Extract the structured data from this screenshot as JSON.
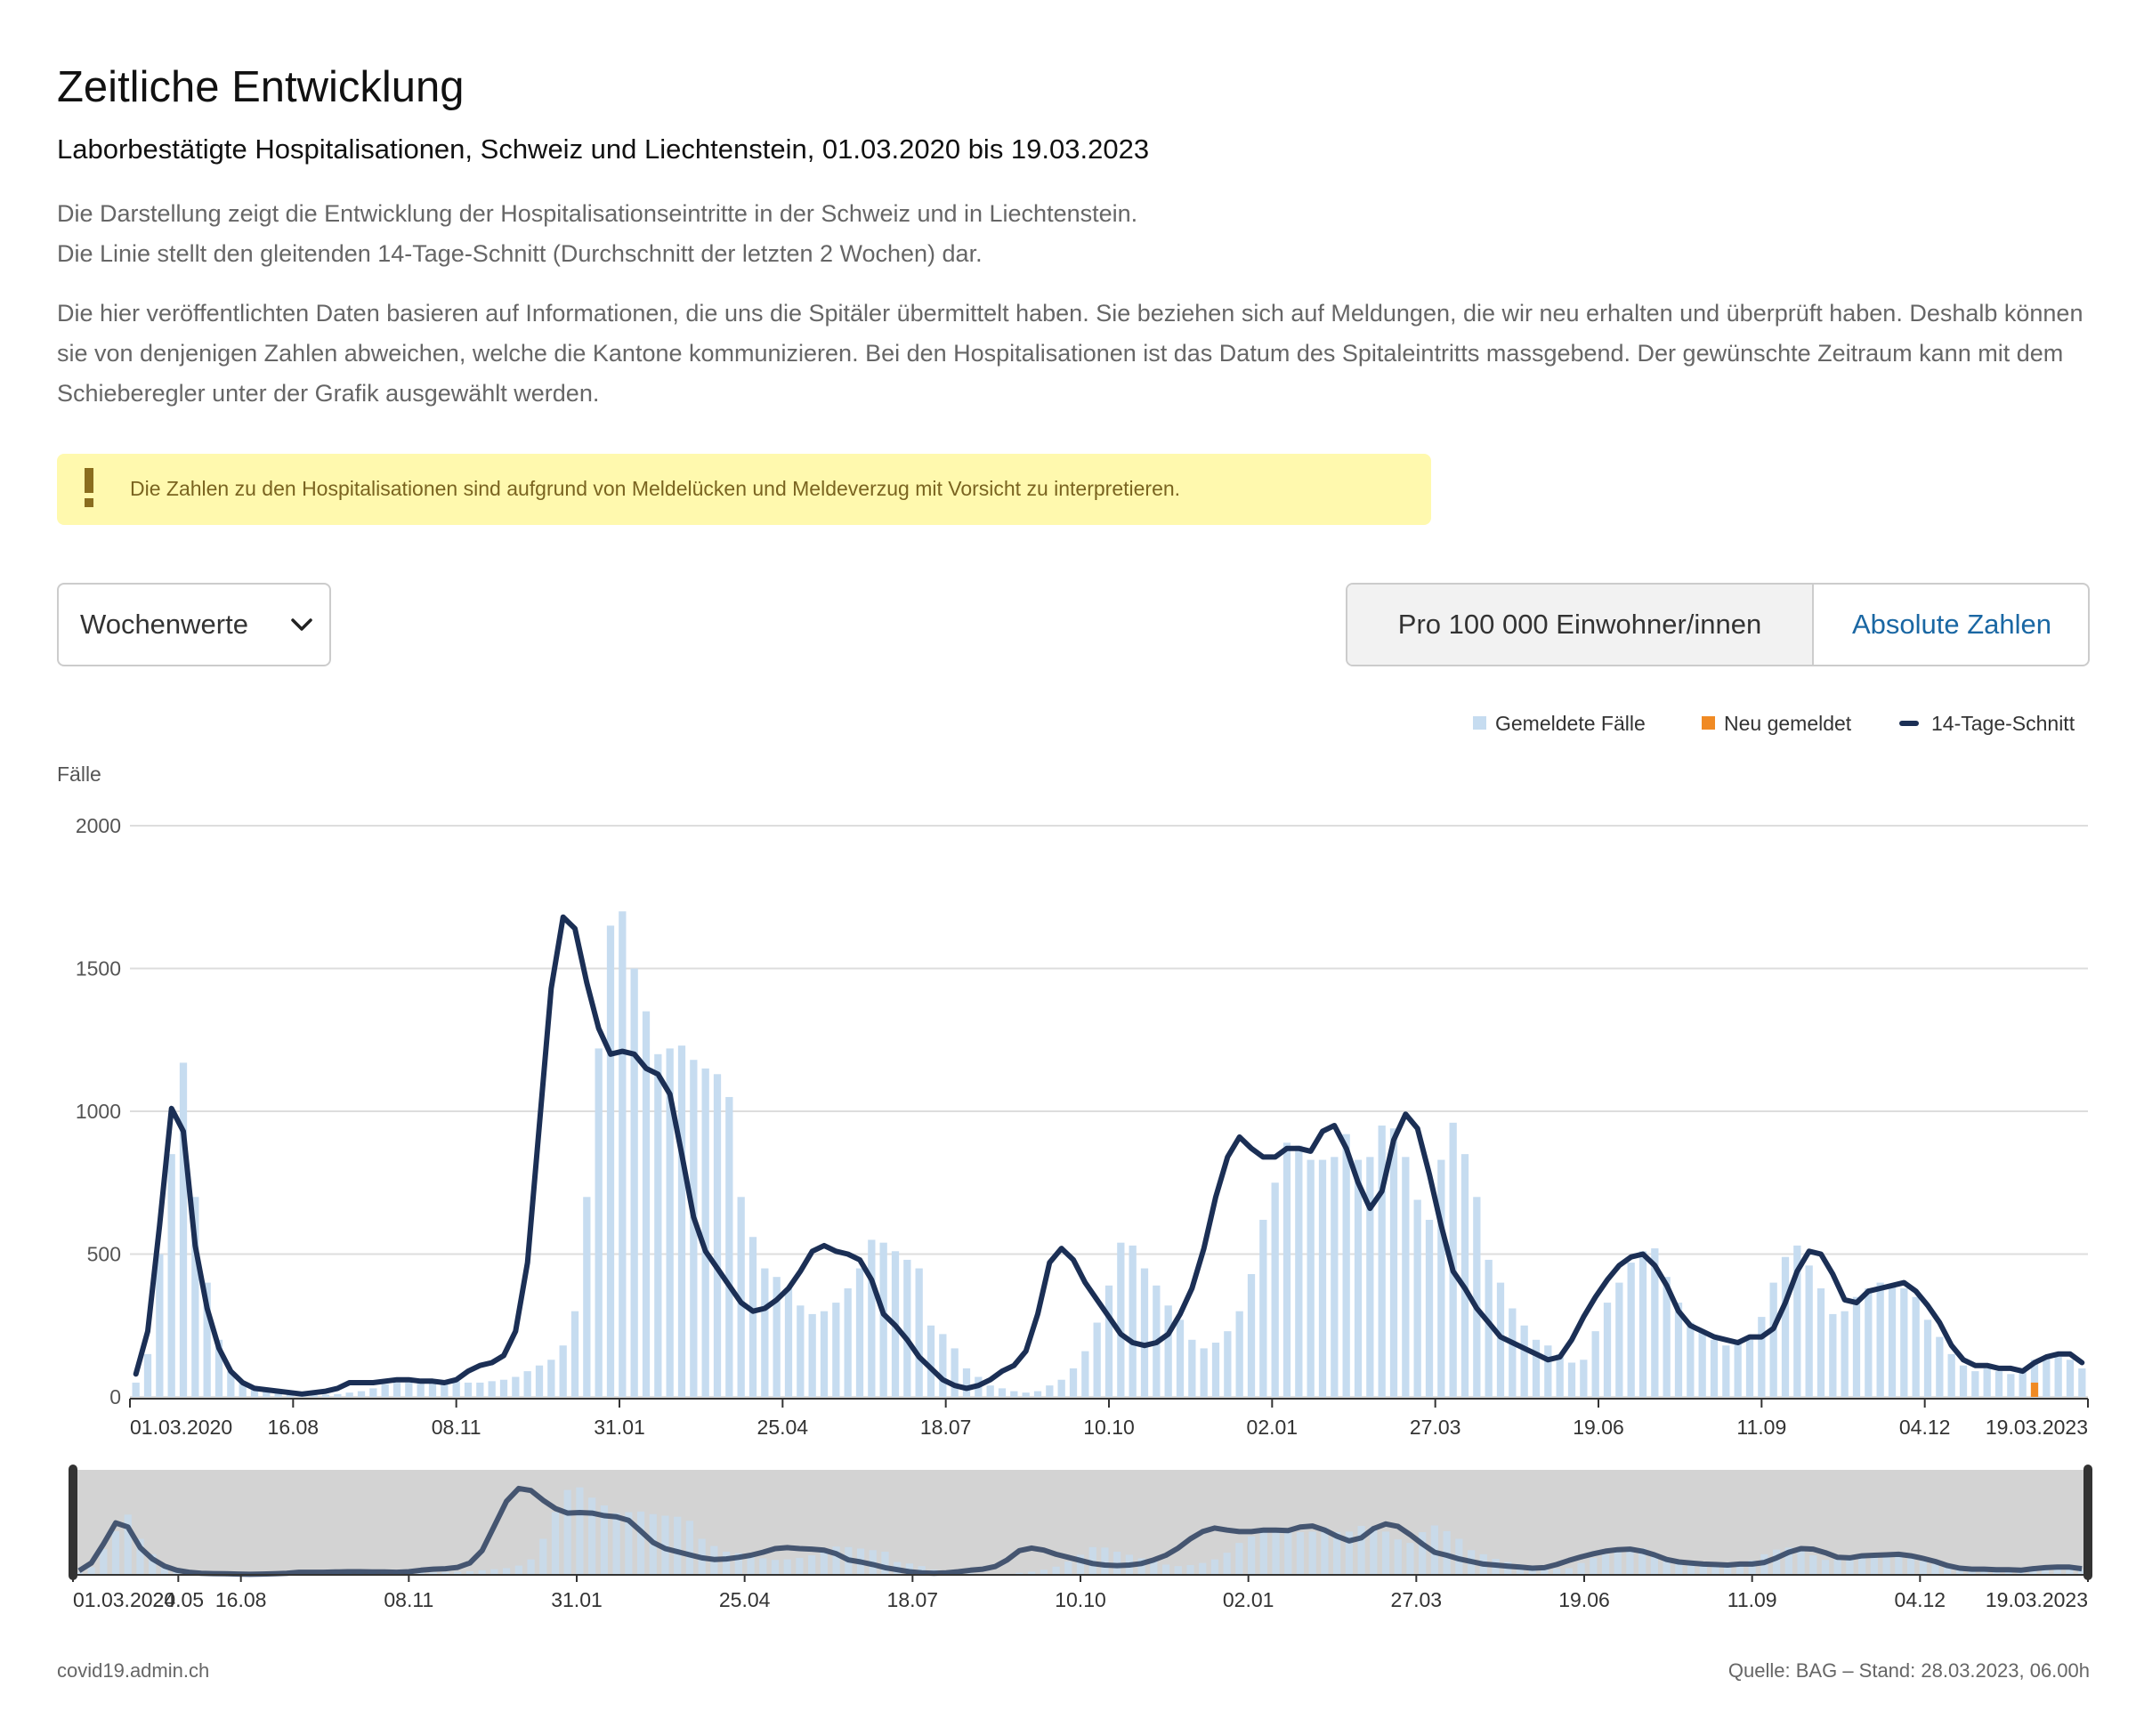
{
  "header": {
    "title": "Zeitliche Entwicklung",
    "subtitle": "Laborbestätigte Hospitalisationen, Schweiz und Liechtenstein, 01.03.2020 bis 19.03.2023"
  },
  "description": {
    "line1": "Die Darstellung zeigt die Entwicklung der Hospitalisationseintritte in der Schweiz und in Liechtenstein.",
    "line2": "Die Linie stellt den gleitenden 14-Tage-Schnitt (Durchschnitt der letzten 2 Wochen) dar.",
    "para2": "Die hier veröffentlichten Daten basieren auf Informationen, die uns die Spitäler übermittelt haben. Sie beziehen sich auf Meldungen, die wir neu erhalten und überprüft haben. Deshalb können sie von denjenigen Zahlen abweichen, welche die Kantone kommunizieren. Bei den Hospitalisationen ist das Datum des Spitaleintritts massgebend. Der gewünschte Zeitraum kann mit dem Schieberegler unter der Grafik ausgewählt werden."
  },
  "warning": {
    "icon": "exclamation-icon",
    "text": "Die Zahlen zu den Hospitalisationen sind aufgrund von Meldelücken und Meldeverzug mit Vorsicht zu interpretieren."
  },
  "controls": {
    "granularity_selected": "Wochenwerte",
    "toggle_per_capita": "Pro 100 000 Einwohner/innen",
    "toggle_absolute": "Absolute Zahlen",
    "toggle_active": "toggle_per_capita"
  },
  "legend": {
    "reported": "Gemeldete Fälle",
    "new": "Neu gemeldet",
    "avg": "14-Tage-Schnitt"
  },
  "colors": {
    "bar": "#c6dcf0",
    "new": "#f08a24",
    "line": "#1b2f55",
    "grid": "#dddddd",
    "brush_bg": "#d3d3d3",
    "handle": "#333333",
    "link": "#1a67a3"
  },
  "chart_data": {
    "type": "bar",
    "ylabel": "Fälle",
    "ylim": [
      0,
      2000
    ],
    "yticks": [
      0,
      500,
      1000,
      1500,
      2000
    ],
    "xlabel": "",
    "x_ticks": [
      "01.03.2020",
      "16.08",
      "08.11",
      "31.01",
      "25.04",
      "18.07",
      "10.10",
      "02.01",
      "27.03",
      "19.06",
      "11.09",
      "04.12",
      "19.03.2023"
    ],
    "brush_ticks": [
      "01.03.2020",
      "24.05",
      "16.08",
      "08.11",
      "31.01",
      "25.04",
      "18.07",
      "10.10",
      "02.01",
      "27.03",
      "19.06",
      "11.09",
      "04.12",
      "19.03.2023"
    ],
    "start_date": "01.03.2020",
    "end_date": "19.03.2023",
    "series": [
      {
        "name": "Gemeldete Fälle",
        "type": "bar",
        "values": [
          50,
          150,
          500,
          850,
          1170,
          700,
          400,
          200,
          90,
          50,
          30,
          20,
          15,
          10,
          8,
          6,
          8,
          10,
          15,
          20,
          30,
          45,
          50,
          50,
          55,
          60,
          55,
          55,
          50,
          50,
          55,
          60,
          70,
          90,
          110,
          130,
          180,
          300,
          700,
          1220,
          1650,
          1700,
          1500,
          1350,
          1200,
          1220,
          1230,
          1180,
          1150,
          1130,
          1050,
          700,
          560,
          450,
          420,
          380,
          320,
          290,
          300,
          330,
          380,
          450,
          550,
          540,
          510,
          480,
          450,
          250,
          220,
          170,
          100,
          70,
          40,
          30,
          20,
          15,
          20,
          40,
          60,
          100,
          160,
          260,
          390,
          540,
          530,
          450,
          390,
          320,
          270,
          200,
          170,
          190,
          230,
          300,
          430,
          620,
          750,
          890,
          880,
          830,
          830,
          840,
          920,
          830,
          840,
          950,
          940,
          840,
          690,
          620,
          830,
          960,
          850,
          700,
          480,
          400,
          310,
          250,
          200,
          180,
          150,
          120,
          130,
          230,
          330,
          400,
          470,
          510,
          520,
          420,
          330,
          260,
          230,
          200,
          180,
          200,
          200,
          280,
          400,
          490,
          530,
          460,
          380,
          290,
          300,
          350,
          380,
          400,
          390,
          380,
          350,
          270,
          210,
          150,
          110,
          90,
          100,
          90,
          80,
          100,
          130,
          140,
          140,
          130,
          100
        ]
      },
      {
        "name": "Neu gemeldet",
        "type": "bar",
        "values": [
          0,
          0,
          0,
          0,
          0,
          0,
          0,
          0,
          0,
          0,
          0,
          0,
          0,
          0,
          0,
          0,
          0,
          0,
          0,
          0,
          0,
          0,
          0,
          0,
          0,
          0,
          0,
          0,
          0,
          0,
          0,
          0,
          0,
          0,
          0,
          0,
          0,
          0,
          0,
          0,
          0,
          0,
          0,
          0,
          0,
          0,
          0,
          0,
          0,
          0,
          0,
          0,
          0,
          0,
          0,
          0,
          0,
          0,
          0,
          0,
          0,
          0,
          0,
          0,
          0,
          0,
          0,
          0,
          0,
          0,
          0,
          0,
          0,
          0,
          0,
          0,
          0,
          0,
          0,
          0,
          0,
          0,
          0,
          0,
          0,
          0,
          0,
          0,
          0,
          0,
          0,
          0,
          0,
          0,
          0,
          0,
          0,
          0,
          0,
          0,
          0,
          0,
          0,
          0,
          0,
          0,
          0,
          0,
          0,
          0,
          0,
          0,
          0,
          0,
          0,
          0,
          0,
          0,
          0,
          0,
          0,
          0,
          0,
          0,
          0,
          0,
          0,
          0,
          0,
          0,
          0,
          0,
          0,
          0,
          0,
          0,
          0,
          0,
          0,
          0,
          0,
          0,
          0,
          0,
          0,
          0,
          0,
          0,
          0,
          0,
          0,
          0,
          0,
          0,
          0,
          0,
          0,
          0,
          0,
          0,
          50
        ]
      },
      {
        "name": "14-Tage-Schnitt",
        "type": "line",
        "values": [
          80,
          230,
          600,
          1010,
          930,
          530,
          310,
          170,
          90,
          50,
          30,
          25,
          20,
          15,
          10,
          15,
          20,
          30,
          50,
          50,
          50,
          55,
          60,
          60,
          55,
          55,
          50,
          60,
          90,
          110,
          120,
          145,
          230,
          470,
          950,
          1430,
          1680,
          1640,
          1450,
          1290,
          1200,
          1210,
          1200,
          1150,
          1130,
          1060,
          850,
          630,
          510,
          450,
          390,
          330,
          300,
          310,
          340,
          380,
          440,
          510,
          530,
          510,
          500,
          480,
          410,
          290,
          250,
          200,
          140,
          100,
          60,
          40,
          30,
          40,
          60,
          90,
          110,
          160,
          290,
          470,
          520,
          480,
          400,
          340,
          280,
          220,
          190,
          180,
          190,
          220,
          290,
          380,
          520,
          700,
          840,
          910,
          870,
          840,
          840,
          870,
          870,
          860,
          930,
          950,
          870,
          750,
          660,
          720,
          900,
          990,
          940,
          780,
          600,
          440,
          380,
          310,
          260,
          210,
          190,
          170,
          150,
          130,
          140,
          200,
          280,
          350,
          410,
          460,
          490,
          500,
          460,
          390,
          300,
          250,
          230,
          210,
          200,
          190,
          210,
          210,
          240,
          330,
          440,
          510,
          500,
          430,
          340,
          330,
          370,
          380,
          390,
          400,
          370,
          320,
          260,
          180,
          130,
          110,
          110,
          100,
          100,
          90,
          120,
          140,
          150,
          150,
          120
        ]
      }
    ]
  },
  "footer": {
    "left": "covid19.admin.ch",
    "right": "Quelle: BAG – Stand: 28.03.2023, 06.00h"
  }
}
